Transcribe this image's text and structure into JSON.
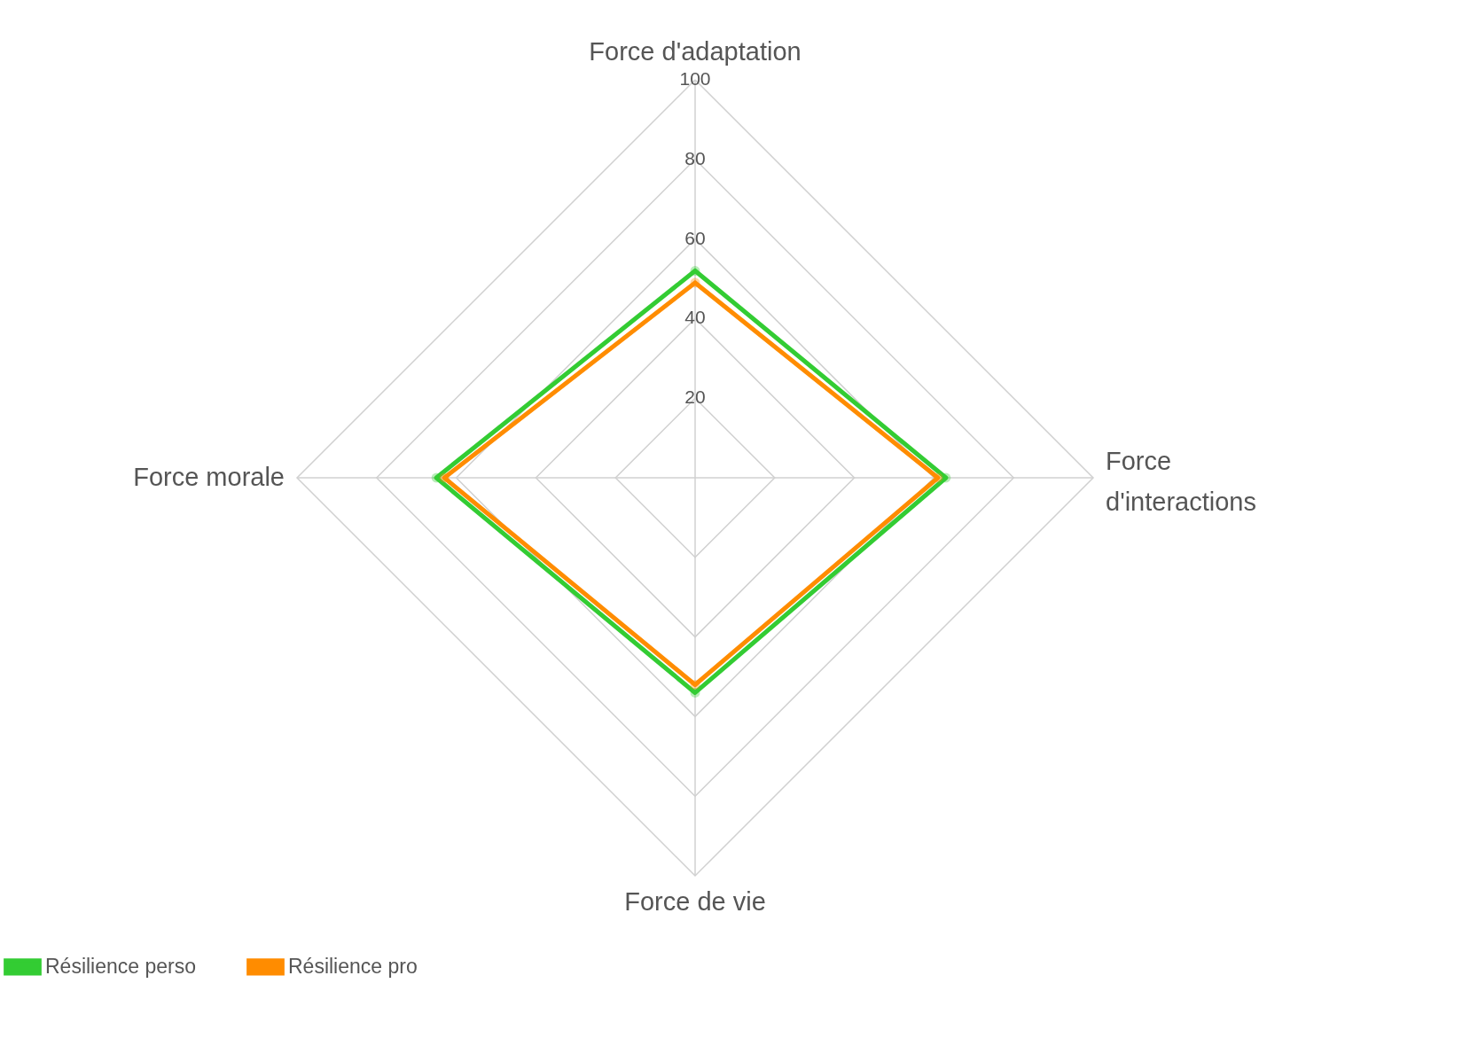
{
  "chart_data": {
    "type": "radar",
    "categories": [
      "Force d'adaptation",
      "Force d'interactions",
      "Force de vie",
      "Force morale"
    ],
    "series": [
      {
        "name": "Résilience perso",
        "color": "#33cc33",
        "values": [
          52,
          63,
          54,
          65
        ]
      },
      {
        "name": "Résilience pro",
        "color": "#ff8c00",
        "values": [
          49,
          61,
          52,
          63
        ]
      }
    ],
    "ylim": [
      0,
      100
    ],
    "yticks": [
      20,
      40,
      60,
      80,
      100
    ],
    "grid": true,
    "legend": "bottom",
    "marker": "circle",
    "line_style": "solid"
  }
}
